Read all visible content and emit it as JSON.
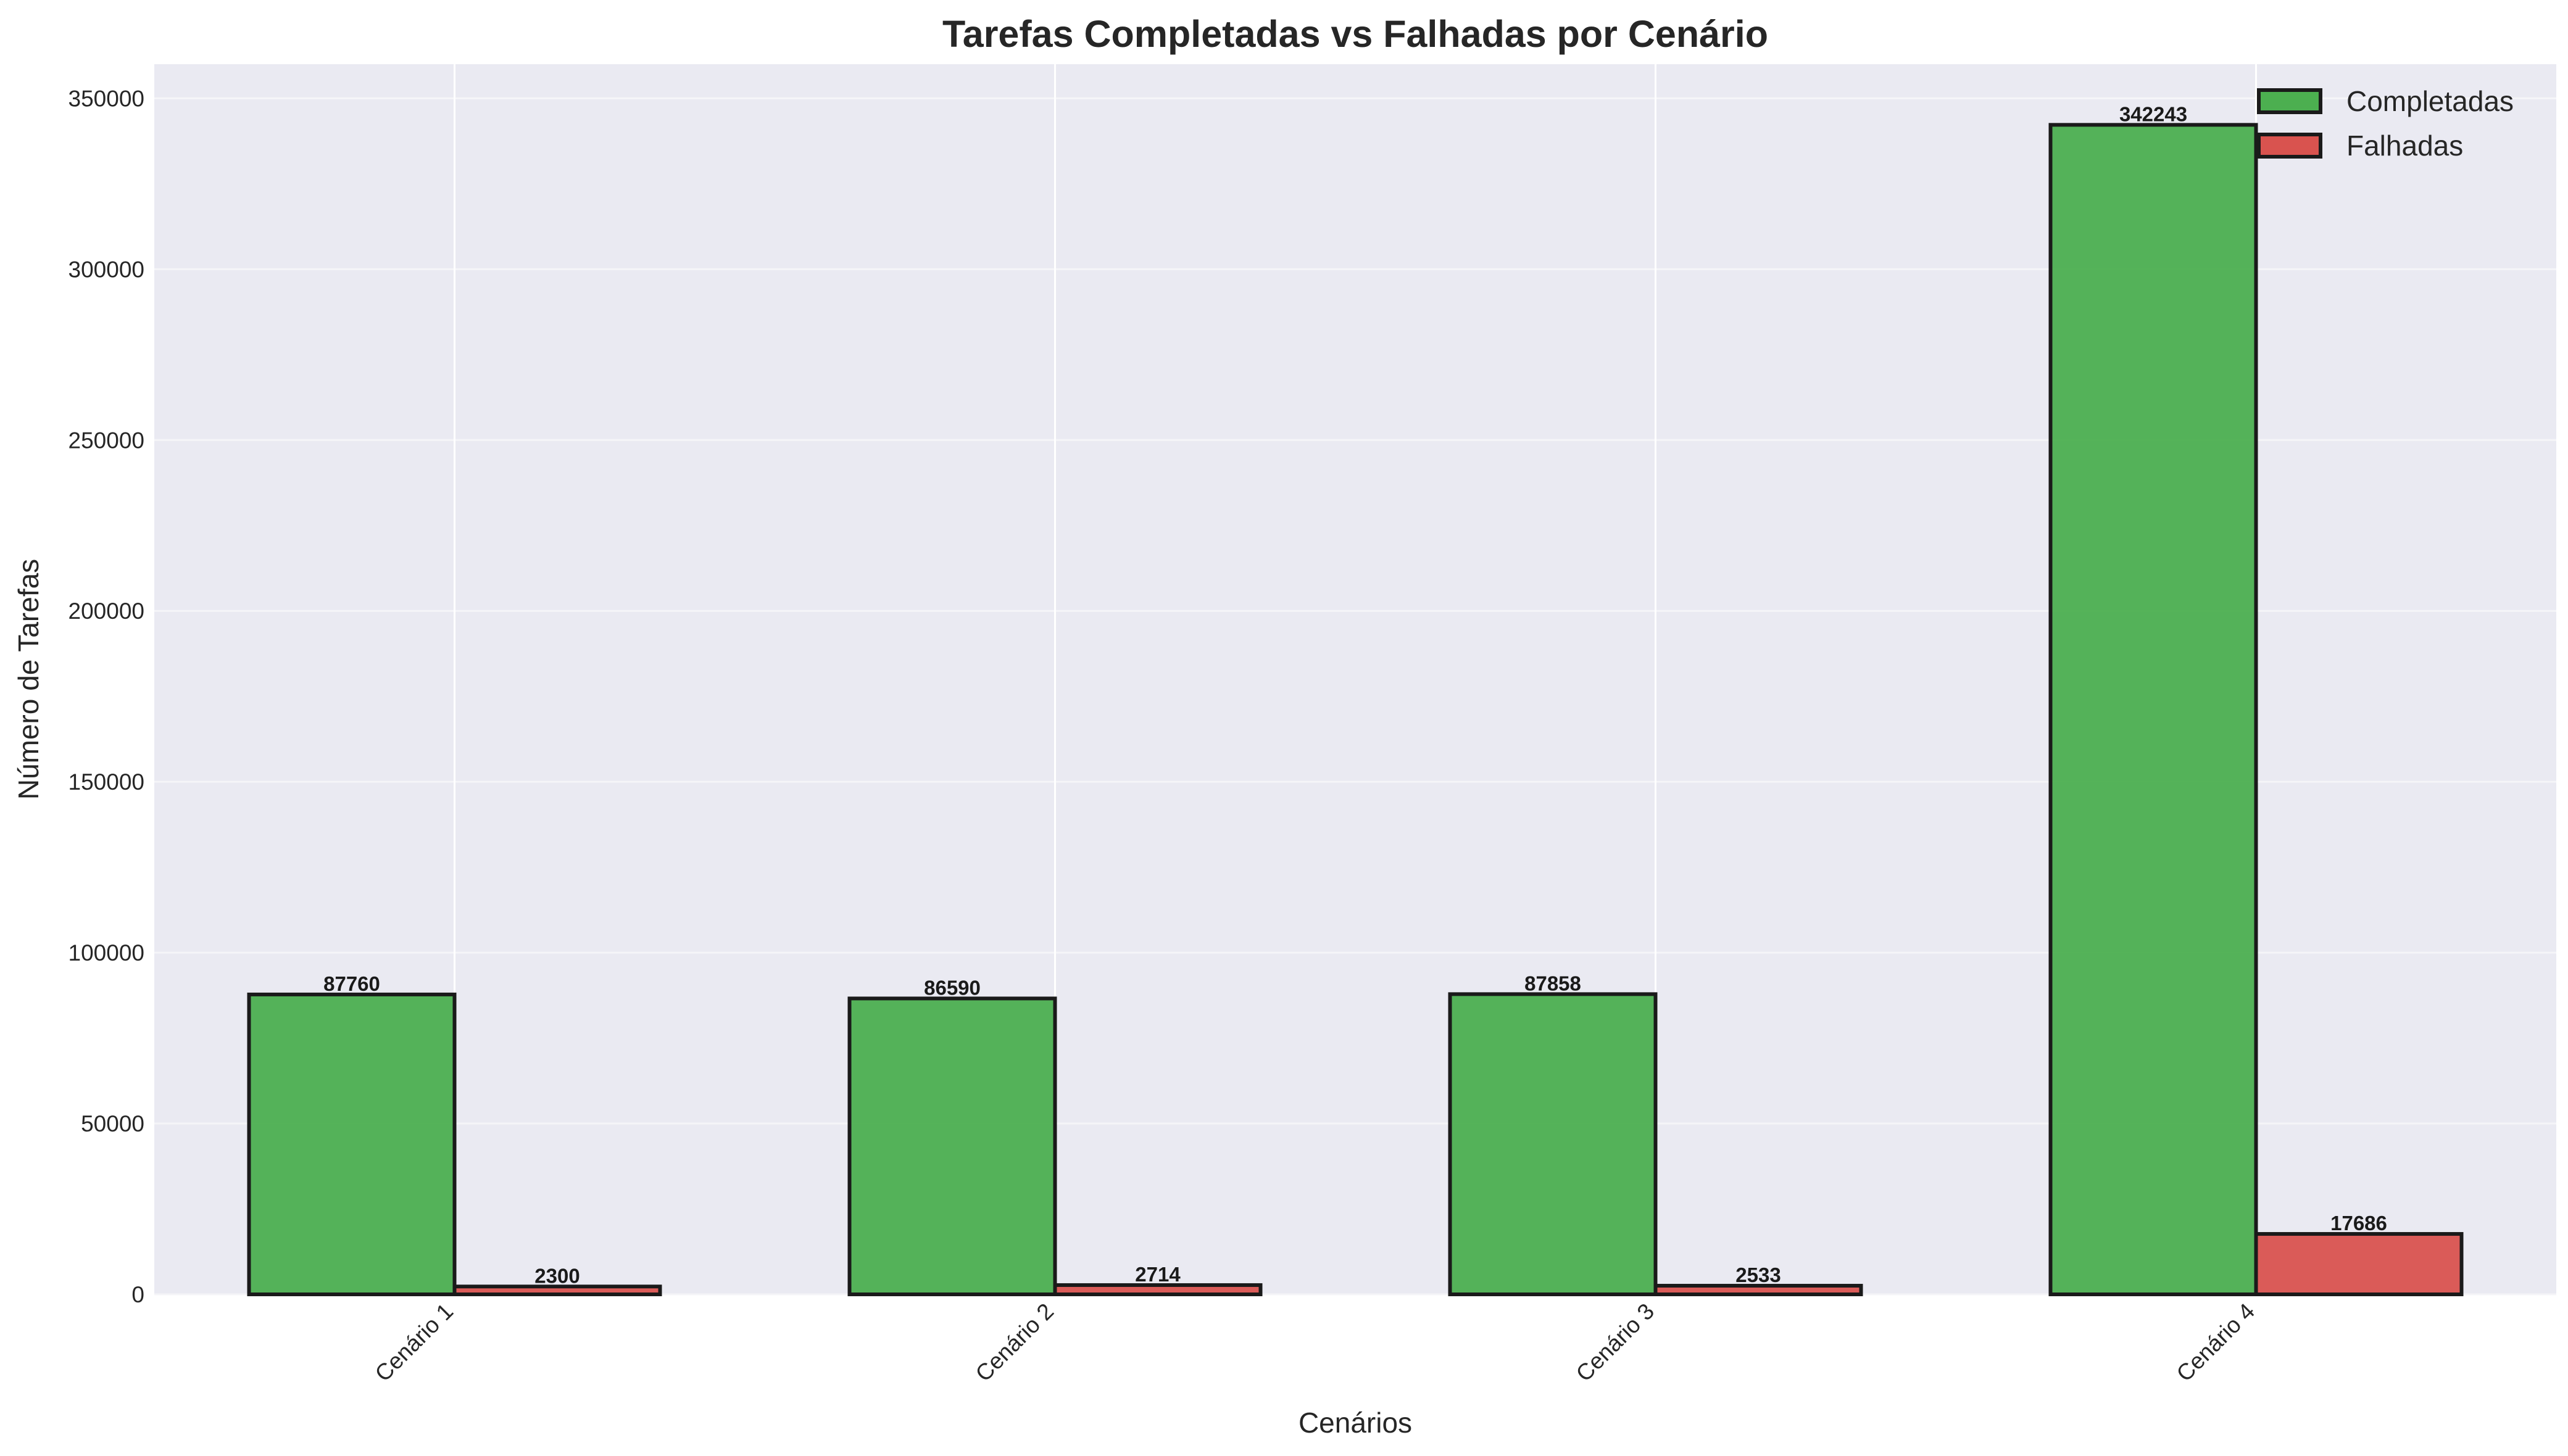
{
  "chart_data": {
    "type": "bar",
    "title": "Tarefas Completadas vs Falhadas por Cenário",
    "xlabel": "Cenários",
    "ylabel": "Número de Tarefas",
    "categories": [
      "Cenário 1",
      "Cenário 2",
      "Cenário 3",
      "Cenário 4"
    ],
    "series": [
      {
        "name": "Completadas",
        "values": [
          87760,
          86590,
          87858,
          342243
        ],
        "color": "#4caf50"
      },
      {
        "name": "Falhadas",
        "values": [
          2300,
          2714,
          2533,
          17686
        ],
        "color": "#d9534f"
      }
    ],
    "ylim": [
      0,
      360000
    ],
    "yticks": [
      0,
      50000,
      100000,
      150000,
      200000,
      250000,
      300000,
      350000
    ],
    "grid": true,
    "legend_position": "top-right",
    "background_color": "#eaeaf2",
    "edge_color": "#1a1a1a",
    "bar_labels": true
  }
}
